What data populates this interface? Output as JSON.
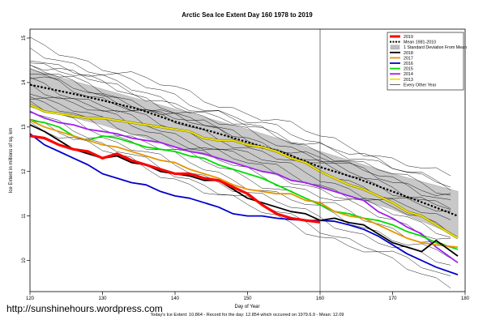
{
  "chart_data": {
    "type": "line",
    "title": "Arctic Sea Ice Extent Day 160 1978 to 2019",
    "xlabel": "Day of Year",
    "ylabel": "Ice Extent in millions of sq. km",
    "xlim": [
      120,
      180
    ],
    "ylim": [
      9.3,
      15.2
    ],
    "x_ticks": [
      120,
      130,
      140,
      150,
      160,
      170,
      180
    ],
    "y_ticks": [
      10,
      11,
      12,
      13,
      14,
      15
    ],
    "marker_day": 160,
    "grid": false,
    "legend_position": "top-right",
    "legend": [
      {
        "label": "2019",
        "color": "#ff0000",
        "style": "thick"
      },
      {
        "label": "Mean 1981-2010",
        "color": "#000000",
        "style": "dotted"
      },
      {
        "label": "1 Standard Deviation From Mean",
        "color": "#bdbdbd",
        "style": "box"
      },
      {
        "label": "2018",
        "color": "#000000",
        "style": "solid"
      },
      {
        "label": "2017",
        "color": "#e69500",
        "style": "solid"
      },
      {
        "label": "2016",
        "color": "#0000cc",
        "style": "solid"
      },
      {
        "label": "2015",
        "color": "#00dd00",
        "style": "solid"
      },
      {
        "label": "2014",
        "color": "#a020f0",
        "style": "solid"
      },
      {
        "label": "2013",
        "color": "#f2e600",
        "style": "solid"
      },
      {
        "label": "Every Other Year",
        "color": "#000000",
        "style": "thin"
      }
    ],
    "band": {
      "x": [
        120,
        130,
        140,
        150,
        160,
        170,
        179
      ],
      "upper": [
        14.3,
        13.85,
        13.4,
        12.95,
        12.45,
        11.95,
        11.55
      ],
      "lower": [
        13.45,
        13.05,
        12.55,
        12.1,
        11.65,
        11.15,
        10.55
      ]
    },
    "mean": {
      "x": [
        120,
        125,
        130,
        135,
        140,
        145,
        150,
        155,
        160,
        165,
        170,
        175,
        179
      ],
      "y": [
        13.95,
        13.78,
        13.6,
        13.4,
        13.12,
        12.9,
        12.66,
        12.42,
        12.1,
        11.85,
        11.55,
        11.25,
        11.0
      ]
    },
    "series": [
      {
        "name": "2019",
        "color": "#ff0000",
        "x": [
          120,
          122,
          124,
          126,
          128,
          130,
          132,
          134,
          136,
          138,
          140,
          142,
          144,
          146,
          148,
          150,
          152,
          154,
          156,
          158,
          160
        ],
        "y": [
          12.8,
          12.75,
          12.6,
          12.5,
          12.45,
          12.3,
          12.4,
          12.25,
          12.15,
          12.05,
          11.95,
          11.95,
          11.85,
          11.8,
          11.65,
          11.5,
          11.25,
          11.05,
          10.95,
          10.9,
          10.86
        ]
      },
      {
        "name": "2018",
        "color": "#000000",
        "x": [
          120,
          122,
          124,
          126,
          128,
          130,
          132,
          134,
          136,
          138,
          140,
          142,
          144,
          146,
          148,
          150,
          152,
          154,
          156,
          158,
          160,
          162,
          164,
          166,
          168,
          170,
          172,
          174,
          176,
          179
        ],
        "y": [
          13.05,
          12.9,
          12.7,
          12.5,
          12.4,
          12.3,
          12.35,
          12.2,
          12.15,
          12.0,
          11.95,
          11.9,
          11.8,
          11.8,
          11.6,
          11.4,
          11.3,
          11.2,
          11.1,
          11.05,
          10.9,
          10.95,
          10.85,
          10.8,
          10.6,
          10.4,
          10.3,
          10.2,
          10.45,
          10.1
        ]
      },
      {
        "name": "2017",
        "color": "#e69500",
        "x": [
          120,
          122,
          124,
          126,
          128,
          130,
          132,
          134,
          136,
          138,
          140,
          142,
          144,
          146,
          148,
          150,
          152,
          154,
          156,
          158,
          160,
          162,
          164,
          166,
          168,
          170,
          172,
          174,
          176,
          179
        ],
        "y": [
          13.15,
          13.0,
          12.9,
          12.8,
          12.7,
          12.6,
          12.55,
          12.45,
          12.35,
          12.25,
          12.2,
          12.05,
          11.95,
          11.85,
          11.7,
          11.6,
          11.55,
          11.5,
          11.5,
          11.35,
          11.3,
          11.1,
          11.0,
          10.95,
          10.8,
          10.65,
          10.5,
          10.4,
          10.35,
          10.3
        ]
      },
      {
        "name": "2016",
        "color": "#0000cc",
        "x": [
          120,
          122,
          124,
          126,
          128,
          130,
          132,
          134,
          136,
          138,
          140,
          142,
          144,
          146,
          148,
          150,
          152,
          154,
          156,
          158,
          160,
          162,
          164,
          166,
          168,
          170,
          172,
          174,
          176,
          179
        ],
        "y": [
          12.85,
          12.6,
          12.45,
          12.3,
          12.15,
          11.95,
          11.85,
          11.75,
          11.7,
          11.55,
          11.45,
          11.4,
          11.3,
          11.2,
          11.05,
          11.0,
          11.0,
          10.95,
          10.92,
          10.9,
          10.9,
          10.88,
          10.8,
          10.7,
          10.55,
          10.35,
          10.15,
          10.0,
          9.85,
          9.68
        ]
      },
      {
        "name": "2015",
        "color": "#00dd00",
        "x": [
          120,
          122,
          124,
          126,
          128,
          130,
          132,
          134,
          136,
          138,
          140,
          142,
          144,
          146,
          148,
          150,
          152,
          154,
          156,
          158,
          160,
          162,
          164,
          166,
          168,
          170,
          172,
          174,
          176,
          179
        ],
        "y": [
          13.15,
          13.1,
          13.0,
          12.8,
          12.7,
          12.8,
          12.75,
          12.65,
          12.55,
          12.5,
          12.45,
          12.35,
          12.3,
          12.15,
          12.05,
          11.95,
          11.85,
          11.7,
          11.55,
          11.4,
          11.25,
          11.1,
          11.05,
          10.95,
          10.9,
          10.8,
          10.65,
          10.55,
          10.4,
          10.25
        ]
      },
      {
        "name": "2014",
        "color": "#a020f0",
        "x": [
          120,
          122,
          124,
          126,
          128,
          130,
          132,
          134,
          136,
          138,
          140,
          142,
          144,
          146,
          148,
          150,
          152,
          154,
          156,
          158,
          160,
          162,
          164,
          166,
          168,
          170,
          172,
          174,
          176,
          179
        ],
        "y": [
          13.35,
          13.2,
          13.1,
          13.05,
          12.95,
          12.9,
          12.85,
          12.75,
          12.7,
          12.65,
          12.55,
          12.45,
          12.4,
          12.3,
          12.2,
          12.1,
          12.0,
          11.95,
          11.8,
          11.75,
          11.65,
          11.55,
          11.45,
          11.35,
          11.1,
          10.95,
          10.75,
          10.6,
          10.3,
          9.95
        ]
      },
      {
        "name": "2013",
        "color": "#f2e600",
        "x": [
          120,
          122,
          124,
          126,
          128,
          130,
          132,
          134,
          136,
          138,
          140,
          142,
          144,
          146,
          148,
          150,
          152,
          154,
          156,
          158,
          160,
          162,
          164,
          166,
          168,
          170,
          172,
          174,
          176,
          179
        ],
        "y": [
          13.5,
          13.35,
          13.3,
          13.25,
          13.2,
          13.2,
          13.15,
          13.1,
          13.05,
          13.0,
          12.95,
          12.9,
          12.75,
          12.7,
          12.7,
          12.6,
          12.55,
          12.45,
          12.3,
          12.2,
          12.0,
          11.85,
          11.7,
          11.6,
          11.45,
          11.3,
          11.1,
          11.0,
          10.8,
          10.5
        ]
      }
    ],
    "thin_years": [
      {
        "start": 14.9,
        "end": 11.8
      },
      {
        "start": 14.75,
        "end": 11.6
      },
      {
        "start": 14.6,
        "end": 11.45
      },
      {
        "start": 14.5,
        "end": 11.3
      },
      {
        "start": 14.35,
        "end": 11.15
      },
      {
        "start": 14.3,
        "end": 11.1
      },
      {
        "start": 14.2,
        "end": 10.95
      },
      {
        "start": 14.05,
        "end": 10.8
      },
      {
        "start": 13.95,
        "end": 10.65
      },
      {
        "start": 13.85,
        "end": 10.55
      },
      {
        "start": 13.7,
        "end": 10.4
      },
      {
        "start": 13.6,
        "end": 10.2
      },
      {
        "start": 13.5,
        "end": 10.0
      },
      {
        "start": 13.35,
        "end": 9.8
      },
      {
        "start": 13.2,
        "end": 9.55
      },
      {
        "start": 13.1,
        "end": 9.4
      },
      {
        "start": 14.45,
        "end": 11.7
      },
      {
        "start": 14.15,
        "end": 11.4
      }
    ],
    "footer": "Today's Ice Extent: 10.864  - Record for the day: 12.854 which occurred on 1979.6.9  - Mean: 12.09",
    "watermark": "http://sunshinehours.wordpress.com"
  }
}
